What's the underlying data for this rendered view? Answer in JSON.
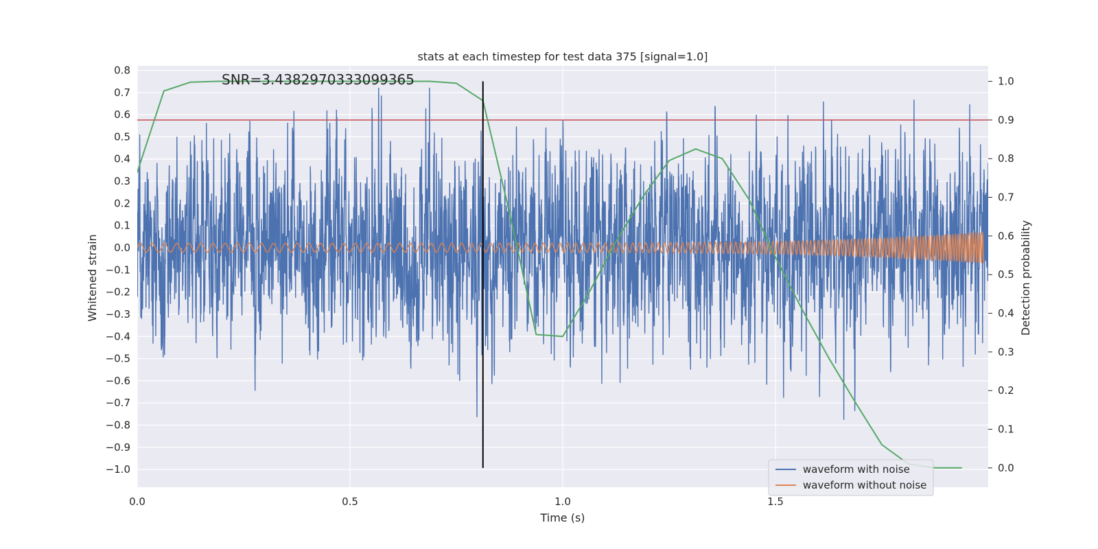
{
  "chart_data": {
    "type": "line",
    "title": "stats at each timestep for test data 375 [signal=1.0]",
    "xlabel": "Time (s)",
    "ylabel": "Whitened strain",
    "y2label": "Detection probability",
    "annotation": "SNR=3.4382970333099365",
    "xlim": [
      0.0,
      2.0
    ],
    "ylim": [
      -1.08,
      0.82
    ],
    "y2lim": [
      -0.05,
      1.04
    ],
    "x_ticks": [
      0.0,
      0.5,
      1.0,
      1.5
    ],
    "x_tick_labels": [
      "0.0",
      "0.5",
      "1.0",
      "1.5"
    ],
    "y_ticks": [
      0.8,
      0.7,
      0.6,
      0.5,
      0.4,
      0.3,
      0.2,
      0.1,
      0.0,
      -0.1,
      -0.2,
      -0.3,
      -0.4,
      -0.5,
      -0.6,
      -0.7,
      -0.8,
      -0.9,
      -1.0
    ],
    "y_tick_labels": [
      "0.8",
      "0.7",
      "0.6",
      "0.5",
      "0.4",
      "0.3",
      "0.2",
      "0.1",
      "0.0",
      "−0.1",
      "−0.2",
      "−0.3",
      "−0.4",
      "−0.5",
      "−0.6",
      "−0.7",
      "−0.8",
      "−0.9",
      "−1.0"
    ],
    "y2_ticks": [
      1.0,
      0.9,
      0.8,
      0.7,
      0.6,
      0.5,
      0.4,
      0.3,
      0.2,
      0.1,
      0.0
    ],
    "y2_tick_labels": [
      "1.0",
      "0.9",
      "0.8",
      "0.7",
      "0.6",
      "0.5",
      "0.4",
      "0.3",
      "0.2",
      "0.1",
      "0.0"
    ],
    "grid": true,
    "legend_position": "bottom-right",
    "series": [
      {
        "name": "waveform with noise",
        "color": "#4c72b0",
        "axis": "left",
        "kind": "noise",
        "x_range": [
          0.0,
          2.0
        ],
        "amplitude_std": 0.22,
        "peak_max": 0.72,
        "peak_min": -0.99
      },
      {
        "name": "waveform without noise",
        "color": "#dd8452",
        "axis": "left",
        "kind": "chirp",
        "x_range": [
          0.0,
          1.99
        ],
        "amplitude_start": 0.02,
        "amplitude_end": 0.07,
        "frequency_start_hz": 35,
        "frequency_end_hz": 180
      },
      {
        "name": "",
        "color": "#55a868",
        "axis": "right",
        "x": [
          0.0,
          0.0625,
          0.125,
          0.1875,
          0.25,
          0.3125,
          0.375,
          0.4375,
          0.5,
          0.5625,
          0.625,
          0.6875,
          0.75,
          0.8125,
          0.875,
          0.9375,
          1.0,
          1.0625,
          1.125,
          1.1875,
          1.25,
          1.3125,
          1.375,
          1.4375,
          1.5,
          1.5625,
          1.625,
          1.6875,
          1.75,
          1.8125,
          1.875,
          1.9375
        ],
        "values": [
          0.765,
          0.975,
          0.998,
          1.0,
          1.0,
          1.0,
          1.0,
          1.0,
          1.0,
          1.0,
          1.0,
          1.0,
          0.995,
          0.95,
          0.66,
          0.345,
          0.34,
          0.455,
          0.585,
          0.7,
          0.795,
          0.825,
          0.8,
          0.695,
          0.545,
          0.41,
          0.285,
          0.17,
          0.06,
          0.01,
          0.0,
          0.0
        ]
      }
    ],
    "hlines": [
      {
        "y2": 0.9,
        "color": "#c44e52"
      }
    ],
    "vlines": [
      {
        "x": 0.8125,
        "color": "#000000",
        "y2_range": [
          0.0,
          1.0
        ]
      }
    ],
    "legend": [
      {
        "label": "waveform with noise",
        "color": "#4c72b0"
      },
      {
        "label": "waveform without noise",
        "color": "#dd8452"
      }
    ],
    "colors": {
      "plot_bg": "#eaeaf2",
      "grid": "#ffffff",
      "text": "#262626"
    }
  }
}
